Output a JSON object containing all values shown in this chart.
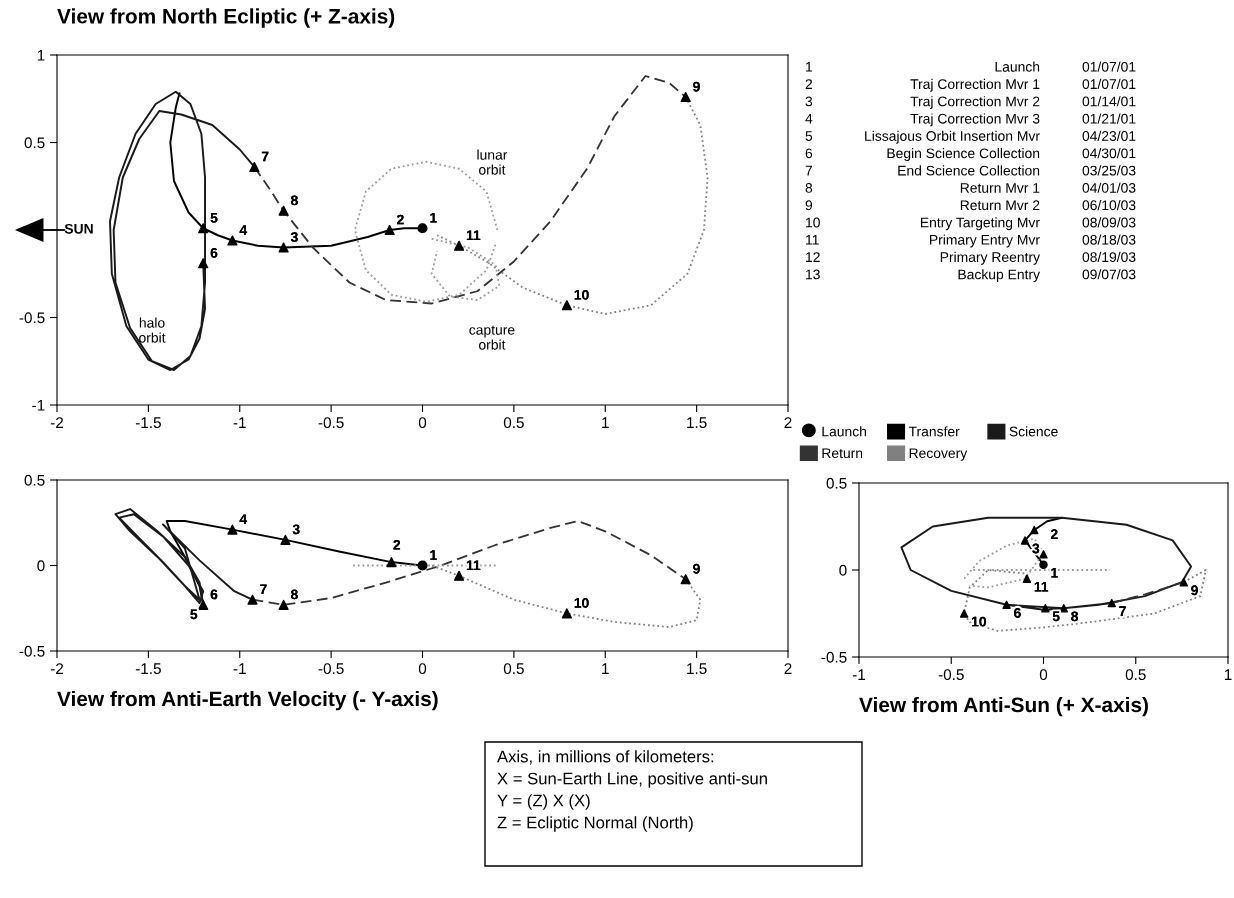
{
  "chart_data": [
    {
      "type": "line",
      "title": "View from North Ecliptic (+ Z-axis)",
      "xlim": [
        -2,
        2
      ],
      "ylim": [
        -1,
        1
      ],
      "xticks": [
        -2,
        -1.5,
        -1,
        -0.5,
        0,
        0.5,
        1,
        1.5,
        2
      ],
      "yticks": [
        -1,
        -0.5,
        {
          "value": 0,
          "label": null
        },
        0.5,
        1
      ],
      "grid": false,
      "legend": "right",
      "series": [
        {
          "name": "Launch",
          "type": "scatter",
          "marker": "circle",
          "color": "#000000",
          "x": [
            0
          ],
          "values": [
            0.01
          ]
        },
        {
          "name": "Transfer",
          "line_style": "solid",
          "color": "#000000",
          "x": [
            0,
            -0.1,
            -0.18,
            -0.3,
            -0.5,
            -0.76,
            -0.9,
            -1.04,
            -1.12,
            -1.2,
            -1.28,
            -1.36,
            -1.38,
            -1.35,
            -1.33
          ],
          "values": [
            0.01,
            0.01,
            0,
            -0.04,
            -0.09,
            -0.1,
            -0.09,
            -0.06,
            -0.03,
            0.01,
            0.1,
            0.28,
            0.5,
            0.7,
            0.78
          ]
        },
        {
          "name": "Science",
          "line_style": "solid",
          "color": "#1a1a1a",
          "x": [
            -1.2,
            -1.19,
            -1.22,
            -1.28,
            -1.38,
            -1.5,
            -1.62,
            -1.7,
            -1.71,
            -1.66,
            -1.57,
            -1.46,
            -1.35,
            -1.27,
            -1.21,
            -1.19,
            -1.19,
            -1.19,
            -1.21,
            -1.27,
            -1.36,
            -1.48,
            -1.6,
            -1.68,
            -1.69,
            -1.64,
            -1.55,
            -1.44,
            -1.32,
            -1.15,
            -1.0,
            -0.92
          ],
          "values": [
            -0.19,
            -0.45,
            -0.62,
            -0.74,
            -0.8,
            -0.74,
            -0.55,
            -0.25,
            0.05,
            0.3,
            0.55,
            0.72,
            0.79,
            0.72,
            0.55,
            0.3,
            0,
            -0.3,
            -0.55,
            -0.72,
            -0.8,
            -0.75,
            -0.56,
            -0.3,
            0,
            0.3,
            0.52,
            0.68,
            0.66,
            0.6,
            0.46,
            0.36
          ]
        },
        {
          "name": "Return",
          "line_style": "dashed",
          "color": "#333333",
          "x": [
            -0.92,
            -0.84,
            -0.76,
            -0.6,
            -0.4,
            -0.2,
            0.05,
            0.3,
            0.5,
            0.7,
            0.9,
            1.05,
            1.22,
            1.35,
            1.44
          ],
          "values": [
            0.36,
            0.24,
            0.11,
            -0.1,
            -0.3,
            -0.4,
            -0.42,
            -0.35,
            -0.18,
            0.05,
            0.35,
            0.65,
            0.88,
            0.84,
            0.76
          ]
        },
        {
          "name": "Recovery",
          "line_style": "dotted",
          "color": "#808080",
          "x": [
            1.44,
            1.52,
            1.56,
            1.54,
            1.45,
            1.25,
            1.0,
            0.79,
            0.55,
            0.35,
            0.2,
            0.08
          ],
          "values": [
            0.76,
            0.6,
            0.3,
            0,
            -0.25,
            -0.43,
            -0.48,
            -0.43,
            -0.33,
            -0.18,
            -0.09,
            -0.03
          ]
        },
        {
          "line_style": "dotted",
          "color": "#999999",
          "x": [
            0.41,
            0.35,
            0.2,
            0.02,
            -0.17,
            -0.31,
            -0.37,
            -0.31,
            -0.17,
            0.02,
            0.2,
            0.35,
            0.4
          ],
          "values": [
            0,
            0.22,
            0.35,
            0.39,
            0.35,
            0.22,
            0,
            -0.23,
            -0.37,
            -0.41,
            -0.37,
            -0.23,
            -0.08
          ]
        },
        {
          "line_style": "dotted",
          "color": "#999999",
          "x": [
            0.05,
            0.25,
            0.4,
            0.42,
            0.3,
            0.15,
            0.05,
            0.08
          ],
          "values": [
            -0.05,
            -0.1,
            -0.2,
            -0.32,
            -0.4,
            -0.38,
            -0.25,
            -0.12
          ]
        },
        {
          "type": "scatter",
          "marker": "triangle",
          "color": "#000000",
          "x": [
            -0.18,
            -0.76,
            -1.04,
            -1.2,
            -1.2,
            -0.92,
            -0.76,
            1.44,
            0.79,
            0.2
          ],
          "values": [
            0,
            -0.1,
            -0.06,
            0.01,
            -0.19,
            0.36,
            0.11,
            0.76,
            -0.43,
            -0.09
          ]
        }
      ],
      "annotations": [
        {
          "text": "1",
          "x": 0,
          "y": 0.01
        },
        {
          "text": "2",
          "x": -0.18,
          "y": 0
        },
        {
          "text": "3",
          "x": -0.76,
          "y": -0.1
        },
        {
          "text": "4",
          "x": -1.04,
          "y": -0.06
        },
        {
          "text": "5",
          "x": -1.2,
          "y": 0.01
        },
        {
          "text": "6",
          "x": -1.2,
          "y": -0.19
        },
        {
          "text": "7",
          "x": -0.92,
          "y": 0.36
        },
        {
          "text": "8",
          "x": -0.76,
          "y": 0.11
        },
        {
          "text": "9",
          "x": 1.44,
          "y": 0.76
        },
        {
          "text": "10",
          "x": 0.79,
          "y": -0.43
        },
        {
          "text": "11",
          "x": 0.2,
          "y": -0.09
        },
        "lunar\norbit",
        "capture\norbit",
        "halo\norbit",
        "SUN",
        "1",
        "Launch",
        "01/07/01",
        "2",
        "Traj Correction Mvr 1",
        "01/07/01",
        "3",
        "Traj Correction Mvr 2",
        "01/14/01",
        "4",
        "Traj Correction Mvr 3",
        "01/21/01",
        "5",
        "Lissajous Orbit Insertion Mvr",
        "04/23/01",
        "6",
        "Begin Science Collection",
        "04/30/01",
        "7",
        "End Science Collection",
        "03/25/03",
        "8",
        "Return Mvr 1",
        "04/01/03",
        "9",
        "Return Mvr 2",
        "06/10/03",
        "10",
        "Entry Targeting Mvr",
        "08/09/03",
        "11",
        "Primary Entry Mvr",
        "08/18/03",
        "12",
        "Primary Reentry",
        "08/19/03",
        "13",
        "Backup Entry",
        "09/07/03"
      ]
    },
    {
      "type": "line",
      "xlabel": "View from Anti-Earth Velocity (- Y-axis)",
      "xlim": [
        -2,
        2
      ],
      "ylim": [
        -0.5,
        0.5
      ],
      "xticks": [
        -2,
        -1.5,
        -1,
        -0.5,
        0,
        0.5,
        1,
        1.5,
        2
      ],
      "yticks": [
        -0.5,
        0,
        0.5
      ],
      "grid": false,
      "series": [
        {
          "type": "scatter",
          "marker": "circle",
          "color": "#000000",
          "x": [
            0
          ],
          "values": [
            0
          ]
        },
        {
          "line_style": "solid",
          "color": "#000000",
          "x": [
            0,
            -0.17,
            -0.45,
            -0.75,
            -1.04,
            -1.3,
            -1.4,
            -1.38,
            -1.3,
            -1.22,
            -1.2
          ],
          "values": [
            0,
            0.02,
            0.08,
            0.15,
            0.21,
            0.26,
            0.26,
            0.2,
            0.05,
            -0.12,
            -0.23
          ]
        },
        {
          "line_style": "solid",
          "color": "#1a1a1a",
          "x": [
            -1.2,
            -1.22,
            -1.3,
            -1.45,
            -1.6,
            -1.68,
            -1.6,
            -1.45,
            -1.3,
            -1.22,
            -1.2,
            -1.28,
            -1.42,
            -1.58,
            -1.66,
            -1.55,
            -1.42,
            -1.3,
            -1.22,
            -1.3,
            -1.42,
            -1.22,
            -1.03,
            -0.93
          ],
          "values": [
            -0.23,
            -0.1,
            0.05,
            0.2,
            0.33,
            0.3,
            0.2,
            0.05,
            -0.12,
            -0.22,
            -0.15,
            0,
            0.17,
            0.3,
            0.28,
            0.16,
            0.02,
            -0.12,
            -0.2,
            0.1,
            0.24,
            0.03,
            -0.15,
            -0.2
          ]
        },
        {
          "line_style": "dashed",
          "color": "#333333",
          "x": [
            -0.93,
            -0.76,
            -0.5,
            -0.2,
            0.1,
            0.4,
            0.7,
            0.85,
            1.0,
            1.25,
            1.44
          ],
          "values": [
            -0.2,
            -0.23,
            -0.19,
            -0.1,
            0,
            0.12,
            0.22,
            0.26,
            0.2,
            0.06,
            -0.08
          ]
        },
        {
          "line_style": "dotted",
          "color": "#808080",
          "x": [
            1.44,
            1.52,
            1.5,
            1.35,
            1.05,
            0.79,
            0.5,
            0.2,
            0.05
          ],
          "values": [
            -0.08,
            -0.2,
            -0.32,
            -0.36,
            -0.33,
            -0.28,
            -0.2,
            -0.06,
            0
          ]
        },
        {
          "line_style": "dotted",
          "color": "#999999",
          "x": [
            -0.38,
            0.4
          ],
          "values": [
            0,
            0
          ]
        },
        {
          "type": "scatter",
          "marker": "triangle",
          "color": "#000000",
          "x": [
            -0.17,
            -0.75,
            -1.04,
            -1.2,
            -0.93,
            -0.76,
            1.44,
            0.79,
            0.2
          ],
          "values": [
            0.02,
            0.15,
            0.21,
            -0.23,
            -0.2,
            -0.23,
            -0.08,
            -0.28,
            -0.06
          ]
        }
      ],
      "annotations": [
        {
          "text": "1",
          "x": 0,
          "y": 0
        },
        {
          "text": "2",
          "x": -0.2,
          "y": 0.06
        },
        {
          "text": "3",
          "x": -0.75,
          "y": 0.15
        },
        {
          "text": "4",
          "x": -1.04,
          "y": 0.21
        },
        {
          "text": "6",
          "x": -1.2,
          "y": -0.23
        },
        {
          "text": "5",
          "x": -1.2,
          "y": -0.23
        },
        {
          "text": "7",
          "x": -0.93,
          "y": -0.2
        },
        {
          "text": "8",
          "x": -0.76,
          "y": -0.23
        },
        {
          "text": "9",
          "x": 1.44,
          "y": -0.08
        },
        {
          "text": "10",
          "x": 0.79,
          "y": -0.28
        },
        {
          "text": "11",
          "x": 0.2,
          "y": -0.06
        },
        "Axis, in millions of kilometers:",
        "X = Sun-Earth Line, positive anti-sun",
        "Y = (Z) X (X)",
        "Z = Ecliptic Normal (North)"
      ]
    },
    {
      "type": "line",
      "xlabel": "View from Anti-Sun (+ X-axis)",
      "xlim": [
        -1,
        1
      ],
      "ylim": [
        -0.5,
        0.5
      ],
      "xticks": [
        -1,
        -0.5,
        0,
        0.5,
        1
      ],
      "yticks": [
        -0.5,
        0,
        0.5
      ],
      "grid": false,
      "series": [
        {
          "type": "scatter",
          "marker": "circle",
          "color": "#000000",
          "x": [
            0
          ],
          "values": [
            0.03
          ]
        },
        {
          "line_style": "solid",
          "color": "#000000",
          "x": [
            0,
            -0.05,
            -0.1,
            -0.05,
            0.02,
            0.1
          ],
          "values": [
            0.03,
            0.1,
            0.17,
            0.23,
            0.28,
            0.3
          ]
        },
        {
          "line_style": "solid",
          "color": "#1a1a1a",
          "x": [
            -0.2,
            0.01,
            0.3,
            0.55,
            0.75,
            0.8,
            0.7,
            0.45,
            0.1,
            -0.3,
            -0.6,
            -0.77,
            -0.72,
            -0.5,
            -0.2,
            0.11,
            0.37
          ],
          "values": [
            -0.2,
            -0.23,
            -0.2,
            -0.15,
            -0.07,
            0.02,
            0.17,
            0.26,
            0.3,
            0.3,
            0.25,
            0.13,
            0,
            -0.12,
            -0.2,
            -0.22,
            -0.19
          ]
        },
        {
          "line_style": "dashed",
          "color": "#333333",
          "x": [
            0.37,
            0.55,
            0.7,
            0.76
          ],
          "values": [
            -0.19,
            -0.14,
            -0.09,
            -0.07
          ]
        },
        {
          "line_style": "dotted",
          "color": "#808080",
          "x": [
            0.76,
            0.88,
            0.85,
            0.6,
            0.25,
            0,
            -0.25,
            -0.4,
            -0.43,
            -0.4,
            -0.3,
            -0.1,
            -0.09
          ],
          "values": [
            -0.07,
            0,
            -0.15,
            -0.25,
            -0.3,
            -0.33,
            -0.35,
            -0.3,
            -0.25,
            -0.1,
            0,
            -0.02,
            -0.05
          ]
        },
        {
          "line_style": "dotted",
          "color": "#999999",
          "x": [
            -0.38,
            0.36
          ],
          "values": [
            0,
            0
          ]
        },
        {
          "line_style": "dotted",
          "color": "#999999",
          "x": [
            -0.43,
            -0.35,
            -0.2,
            -0.05,
            0,
            -0.1,
            -0.3,
            -0.4
          ],
          "values": [
            -0.05,
            0.05,
            0.14,
            0.18,
            0.1,
            -0.05,
            -0.1,
            -0.09
          ]
        },
        {
          "type": "scatter",
          "marker": "triangle",
          "color": "#000000",
          "x": [
            0,
            -0.1,
            -0.05,
            0.01,
            -0.2,
            0.37,
            0.11,
            0.76,
            -0.43,
            -0.09
          ],
          "values": [
            0.09,
            0.17,
            0.23,
            -0.22,
            -0.2,
            -0.19,
            -0.22,
            -0.07,
            -0.25,
            -0.05
          ]
        }
      ],
      "annotations": [
        {
          "text": "1",
          "x": 0,
          "y": 0.03
        },
        {
          "text": "2",
          "x": 0,
          "y": 0.09
        },
        {
          "text": "3",
          "x": -0.1,
          "y": 0.17
        },
        {
          "text": "5",
          "x": 0.01,
          "y": -0.22
        },
        {
          "text": "6",
          "x": -0.2,
          "y": -0.2
        },
        {
          "text": "7",
          "x": 0.37,
          "y": -0.19
        },
        {
          "text": "8",
          "x": 0.11,
          "y": -0.22
        },
        {
          "text": "9",
          "x": 0.76,
          "y": -0.07
        },
        {
          "text": "10",
          "x": -0.43,
          "y": -0.25
        },
        {
          "text": "11",
          "x": -0.09,
          "y": -0.05
        }
      ]
    }
  ]
}
